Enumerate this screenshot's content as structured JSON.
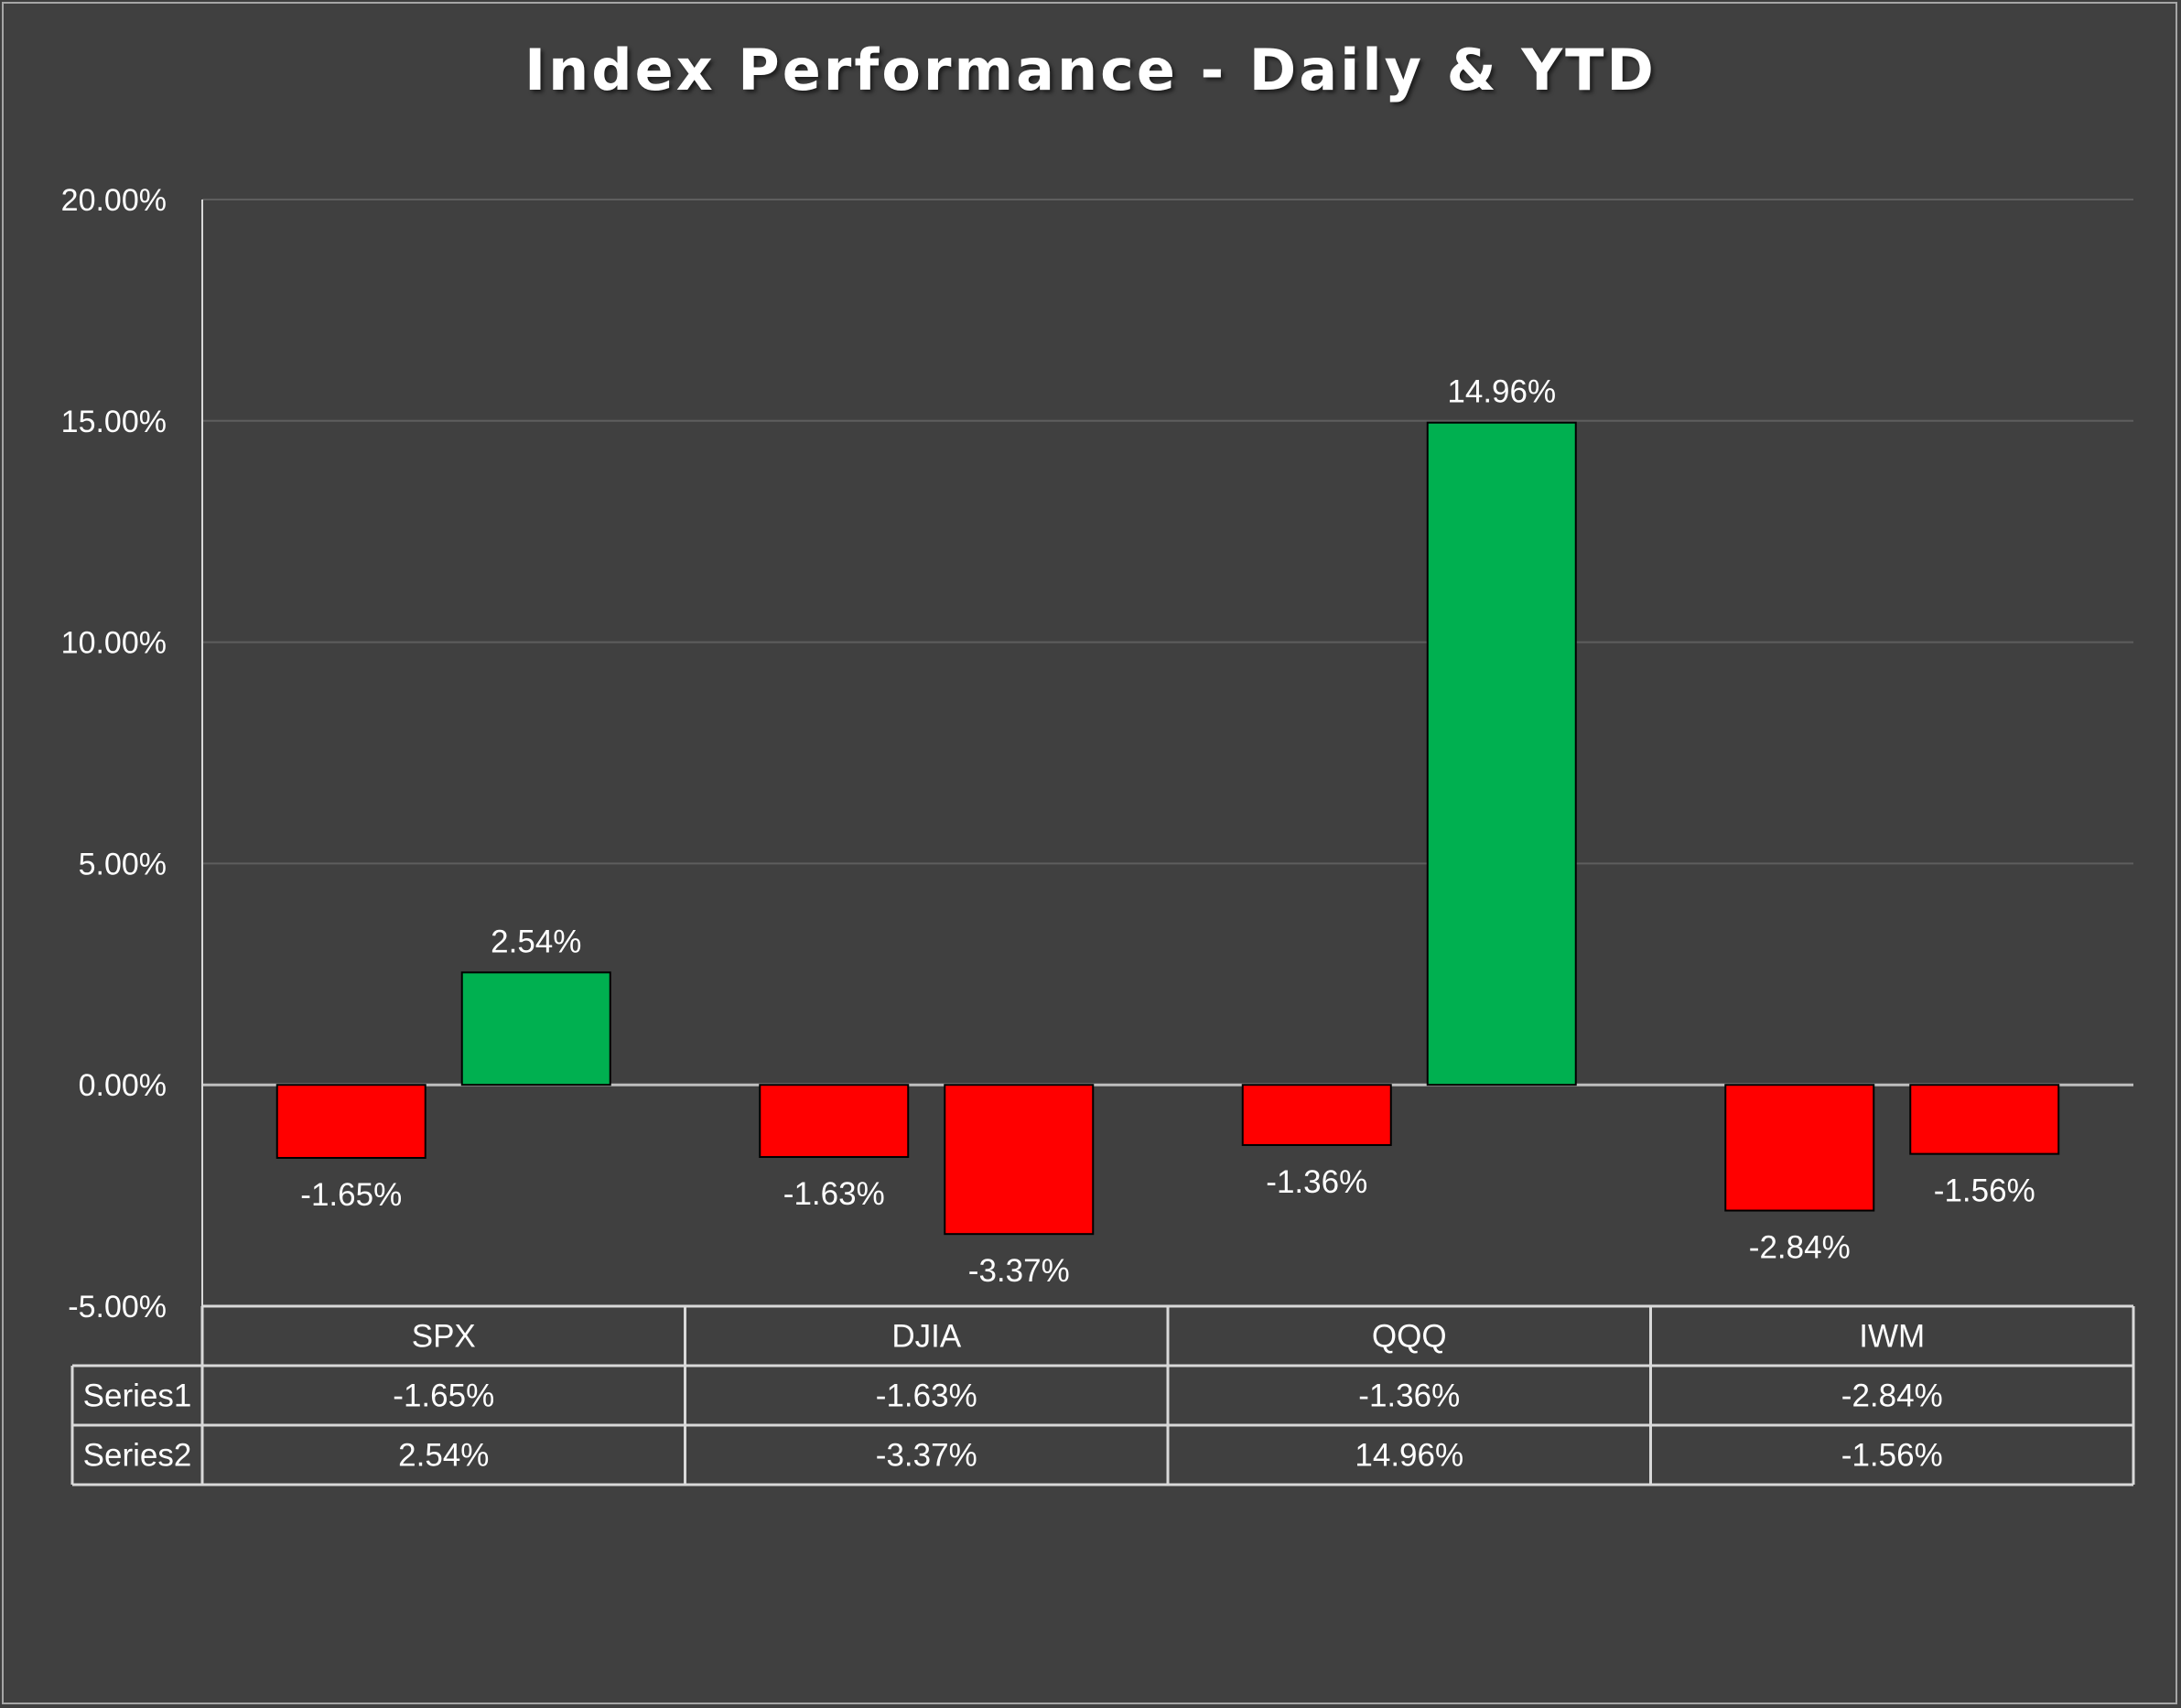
{
  "chart_data": {
    "type": "bar",
    "title": "Index Performance - Daily & YTD",
    "categories": [
      "SPX",
      "DJIA",
      "QQQ",
      "IWM"
    ],
    "series": [
      {
        "name": "Series1",
        "values": [
          -1.65,
          -1.63,
          -1.36,
          -2.84
        ],
        "labels": [
          "-1.65%",
          "-1.63%",
          "-1.36%",
          "-2.84%"
        ]
      },
      {
        "name": "Series2",
        "values": [
          2.54,
          -3.37,
          14.96,
          -1.56
        ],
        "labels": [
          "2.54%",
          "-3.37%",
          "14.96%",
          "-1.56%"
        ]
      }
    ],
    "ylim": [
      -5,
      20
    ],
    "yticks": [
      "20.00%",
      "15.00%",
      "10.00%",
      "5.00%",
      "0.00%",
      "-5.00%"
    ],
    "grid": true,
    "legend": "data table below chart",
    "colors": {
      "positive": "#00b050",
      "negative": "#ff0000",
      "background": "#404040"
    }
  }
}
